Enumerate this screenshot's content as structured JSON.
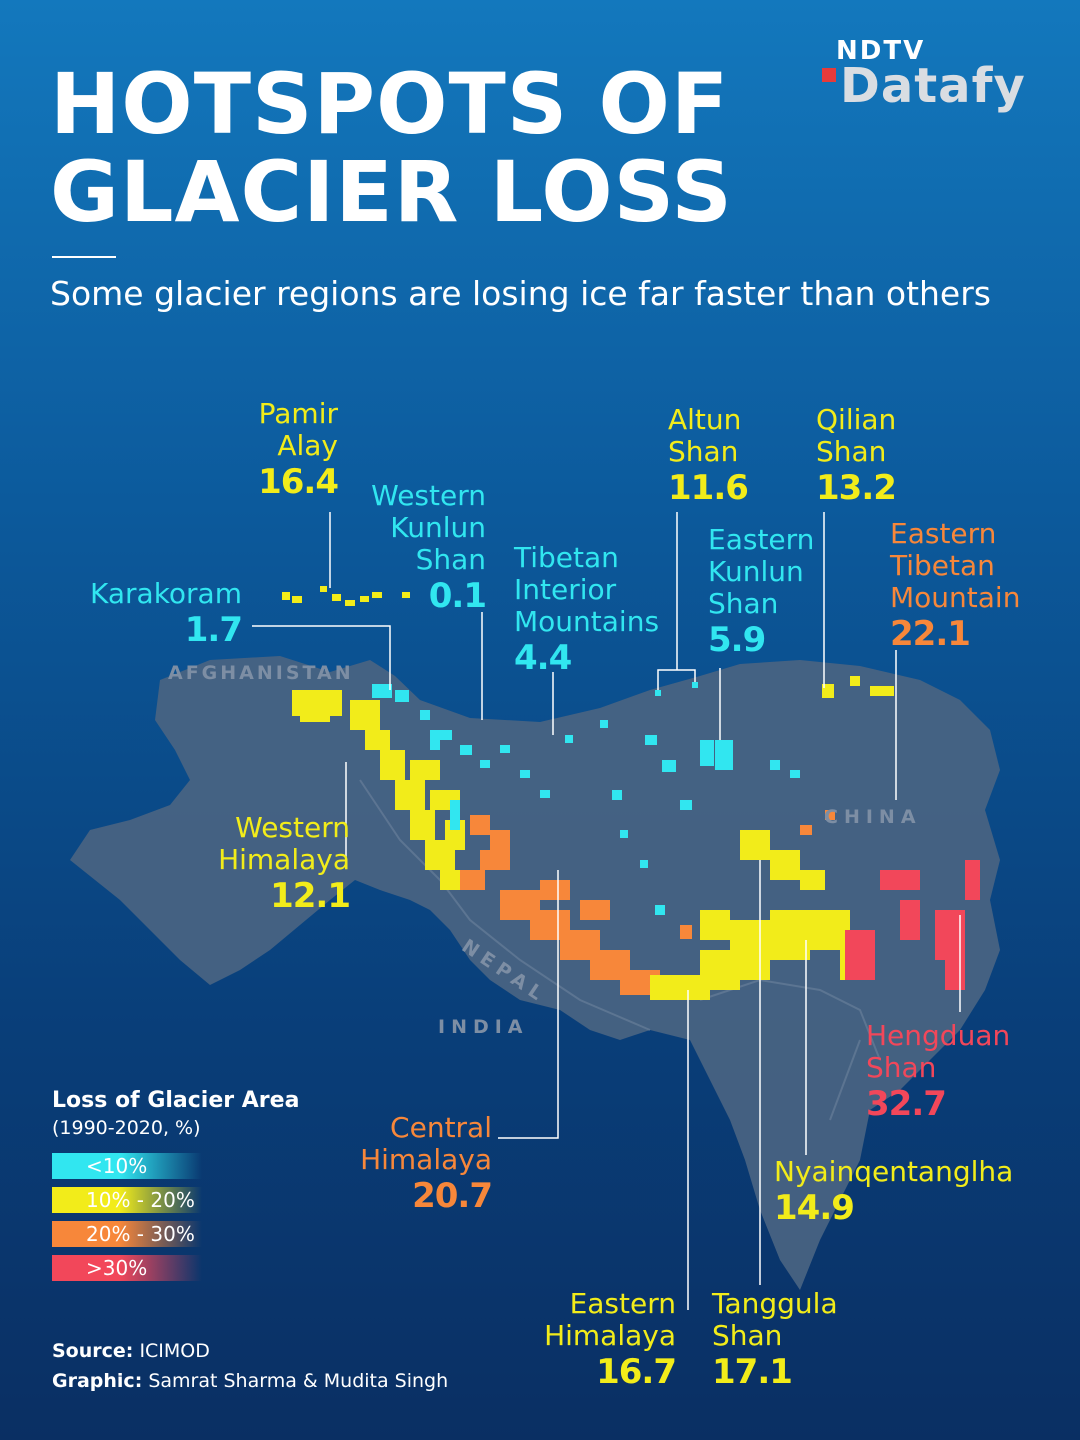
{
  "header": {
    "title_line1": "HOTSPOTS OF",
    "title_line2": "GLACIER LOSS",
    "subtitle": "Some glacier regions are losing ice far faster than others",
    "logo_top": "NDTV",
    "logo_bottom": "Datafy"
  },
  "map": {
    "countries": [
      "AFGHANISTAN",
      "NEPAL",
      "INDIA",
      "CHINA"
    ],
    "regions": [
      {
        "name_lines": [
          "Pamir",
          "Alay"
        ],
        "loss_pct": "16.4",
        "category": "10% - 20%"
      },
      {
        "name_lines": [
          "Western",
          "Kunlun",
          "Shan"
        ],
        "loss_pct": "0.1",
        "category": "<10%"
      },
      {
        "name_lines": [
          "Karakoram"
        ],
        "loss_pct": "1.7",
        "category": "<10%"
      },
      {
        "name_lines": [
          "Tibetan",
          "Interior",
          "Mountains"
        ],
        "loss_pct": "4.4",
        "category": "<10%"
      },
      {
        "name_lines": [
          "Altun",
          "Shan"
        ],
        "loss_pct": "11.6",
        "category": "10% - 20%"
      },
      {
        "name_lines": [
          "Qilian",
          "Shan"
        ],
        "loss_pct": "13.2",
        "category": "10% - 20%"
      },
      {
        "name_lines": [
          "Eastern",
          "Kunlun",
          "Shan"
        ],
        "loss_pct": "5.9",
        "category": "<10%"
      },
      {
        "name_lines": [
          "Eastern",
          "Tibetan",
          "Mountain"
        ],
        "loss_pct": "22.1",
        "category": "20% - 30%"
      },
      {
        "name_lines": [
          "Western",
          "Himalaya"
        ],
        "loss_pct": "12.1",
        "category": "10% - 20%"
      },
      {
        "name_lines": [
          "Hengduan",
          "Shan"
        ],
        "loss_pct": "32.7",
        "category": ">30%"
      },
      {
        "name_lines": [
          "Central",
          "Himalaya"
        ],
        "loss_pct": "20.7",
        "category": "20% - 30%"
      },
      {
        "name_lines": [
          "Nyainqentanglha"
        ],
        "loss_pct": "14.9",
        "category": "10% - 20%"
      },
      {
        "name_lines": [
          "Eastern",
          "Himalaya"
        ],
        "loss_pct": "16.7",
        "category": "10% - 20%"
      },
      {
        "name_lines": [
          "Tanggula",
          "Shan"
        ],
        "loss_pct": "17.1",
        "category": "10% - 20%"
      }
    ]
  },
  "legend": {
    "title": "Loss of Glacier Area",
    "subtitle": "(1990-2020, %)",
    "items": [
      {
        "label": "<10%",
        "color": "#31e6f0"
      },
      {
        "label": "10% - 20%",
        "color": "#f2ec1a"
      },
      {
        "label": "20% - 30%",
        "color": "#f7873a"
      },
      {
        "label": ">30%",
        "color": "#f2475a"
      }
    ]
  },
  "footer": {
    "source_label": "Source:",
    "source_value": "ICIMOD",
    "graphic_label": "Graphic:",
    "graphic_value": "Samrat Sharma & Mudita Singh"
  },
  "colors": {
    "cyan": "#31e6f0",
    "yellow": "#f2ec1a",
    "orange": "#f7873a",
    "red": "#f2475a",
    "land": "#4a6482",
    "background_top": "#1378bd",
    "background_bottom": "#0a2f63"
  }
}
